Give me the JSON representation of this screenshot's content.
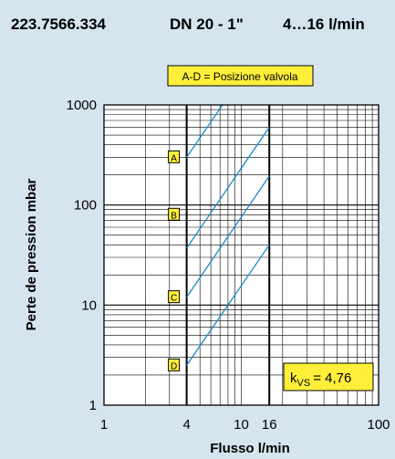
{
  "header": {
    "article": "223.7566.334",
    "dn": "DN 20 - 1\"",
    "range": "4…16 l/min"
  },
  "legend": {
    "text": "A-D = Posizione valvola"
  },
  "kvs": {
    "label": "k",
    "sub": "VS",
    "value": "= 4,76"
  },
  "colors": {
    "background": "#d6e4ee",
    "plot_background": "#ffffff",
    "label_fill": "#ffef3a",
    "curve": "#1a8ac8",
    "grid": "#000000"
  },
  "chart_data": {
    "type": "line",
    "xlabel": "Flusso  l/min",
    "ylabel": "Perte de pression  mbar",
    "xscale": "log",
    "yscale": "log",
    "xlim": [
      1,
      100
    ],
    "ylim": [
      1,
      1000
    ],
    "x_ticks": [
      1,
      4,
      10,
      16,
      100
    ],
    "x_tick_labels": [
      "1",
      "4",
      "10",
      "16",
      "100"
    ],
    "y_ticks": [
      1,
      10,
      100,
      1000
    ],
    "y_tick_labels": [
      "1",
      "10",
      "100",
      "1000"
    ],
    "grid": true,
    "highlight_x": [
      4,
      16
    ],
    "series": [
      {
        "name": "A",
        "label_y": 300,
        "x": [
          4,
          7.3
        ],
        "y": [
          300,
          1000
        ]
      },
      {
        "name": "B",
        "label_y": 80,
        "x": [
          4,
          16
        ],
        "y": [
          37,
          600
        ]
      },
      {
        "name": "C",
        "label_y": 12,
        "x": [
          4,
          16
        ],
        "y": [
          12,
          195
        ]
      },
      {
        "name": "D",
        "label_y": 2.5,
        "x": [
          4,
          16
        ],
        "y": [
          2.5,
          40
        ]
      }
    ]
  }
}
